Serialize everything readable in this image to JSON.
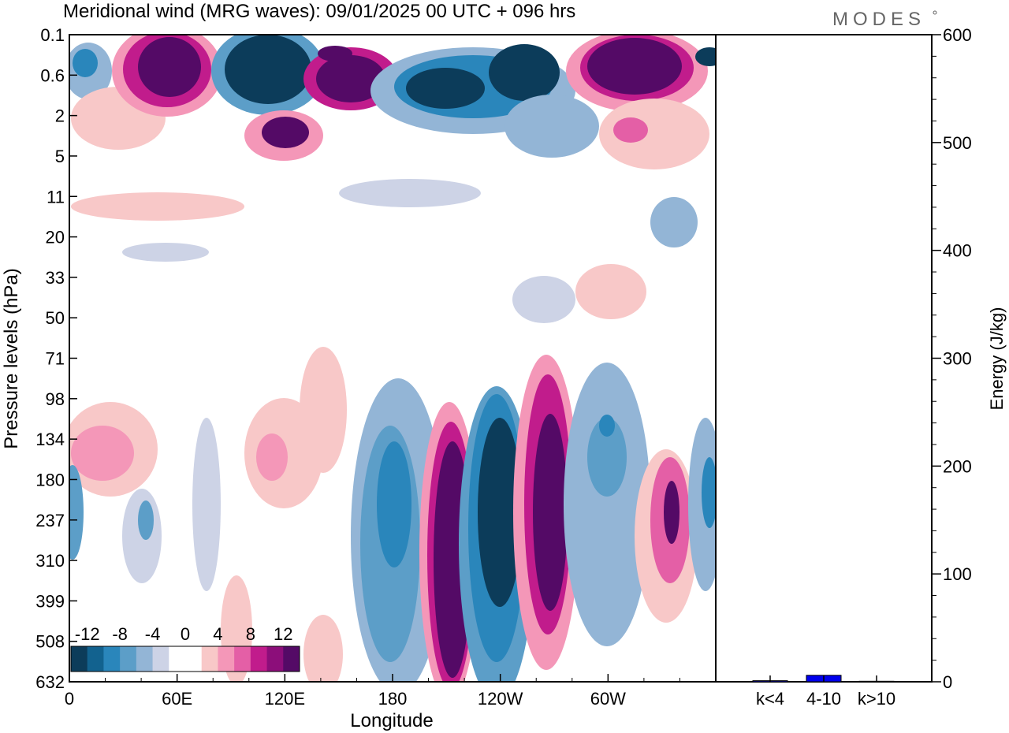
{
  "header": {
    "title": "Meridional wind (MRG waves):  09/01/2025  00 UTC  + 096 hrs",
    "logo": "MODES"
  },
  "colors": {
    "dark_blue": "#0c3c5a",
    "dark_magenta": "#540a66",
    "bar_fill": "#0000ee"
  },
  "chart_data": [
    {
      "type": "heatmap",
      "title": "Meridional wind (MRG waves):  09/01/2025  00 UTC  + 096 hrs",
      "xlabel": "Longitude",
      "ylabel": "Pressure levels (hPa)",
      "x_ticks": [
        "0",
        "60E",
        "120E",
        "180",
        "120W",
        "60W"
      ],
      "y_ticks": [
        "0.1",
        "0.6",
        "2",
        "5",
        "11",
        "20",
        "33",
        "50",
        "71",
        "98",
        "134",
        "180",
        "237",
        "310",
        "399",
        "508",
        "632"
      ],
      "colorbar": {
        "labels": [
          "-12",
          "-8",
          "-4",
          "0",
          "4",
          "8",
          "12"
        ],
        "colors": [
          "#0c3c5a",
          "#12628f",
          "#2a86bb",
          "#5c9ec8",
          "#93b5d6",
          "#cdd3e6",
          "#ffffff",
          "#ffffff",
          "#f8c8c8",
          "#f497b8",
          "#e45fa6",
          "#c11c8c",
          "#8c0e7a",
          "#540a66"
        ]
      }
    },
    {
      "type": "bar",
      "categories": [
        "k<4",
        "4-10",
        "k>10"
      ],
      "values": [
        1,
        6,
        0.5
      ],
      "ylabel": "Energy (J/kg)",
      "ylim": [
        0,
        600
      ],
      "y_ticks": [
        "0",
        "100",
        "200",
        "300",
        "400",
        "500",
        "600"
      ]
    }
  ]
}
